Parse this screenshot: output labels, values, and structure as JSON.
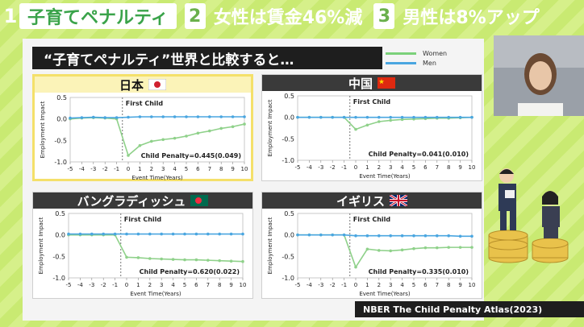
{
  "banner": {
    "items": [
      {
        "num": "1",
        "label": "子育てペナルティ"
      },
      {
        "num": "2",
        "label": "女性は賃金46%減"
      },
      {
        "num": "3",
        "label": "男性は8%アップ"
      }
    ]
  },
  "board": {
    "title": "“子育てペナルティ”世界と比較すると…",
    "legend": [
      {
        "label": "Women",
        "color": "#7bd17a"
      },
      {
        "label": "Men",
        "color": "#4aa6e0"
      }
    ],
    "source": "NBER The Child Penalty Atlas(2023)"
  },
  "colors": {
    "women": "#8fd18a",
    "men": "#4aa6e0",
    "background": "#c9ea72"
  },
  "panels": [
    {
      "country": "日本",
      "flag": "japan-flag-icon",
      "penalty": "Child Penalty=0.445(0.049)",
      "women_x": "w_japan"
    },
    {
      "country": "中国",
      "flag": "china-flag-icon",
      "penalty": "Child Penalty=0.041(0.010)"
    },
    {
      "country": "バングラディッシュ",
      "flag": "bangladesh-flag-icon",
      "penalty": "Child Penalty=0.620(0.022)"
    },
    {
      "country": "イギリス",
      "flag": "uk-flag-icon",
      "penalty": "Child Penalty=0.335(0.010)"
    }
  ],
  "axis": {
    "ylabel": "Employment Impact",
    "xlabel": "Event Time(Years)",
    "first_child": "First Child",
    "yticks": [
      "0.5",
      "0.0",
      "-0.5",
      "-1.0"
    ],
    "xticks": [
      "-5",
      "-4",
      "-3",
      "-2",
      "-1",
      "0",
      "1",
      "2",
      "3",
      "4",
      "5",
      "6",
      "7",
      "8",
      "9",
      "10"
    ]
  },
  "chart_data": [
    {
      "type": "line",
      "title": "日本",
      "x": [
        -5,
        -4,
        -3,
        -2,
        -1,
        0,
        1,
        2,
        3,
        4,
        5,
        6,
        7,
        8,
        9,
        10
      ],
      "ylim": [
        -1.0,
        0.5
      ],
      "series": [
        {
          "name": "Women",
          "values": [
            0.0,
            0.02,
            0.03,
            0.02,
            0.0,
            -0.85,
            -0.62,
            -0.52,
            -0.48,
            -0.45,
            -0.4,
            -0.33,
            -0.28,
            -0.22,
            -0.18,
            -0.12
          ]
        },
        {
          "name": "Men",
          "values": [
            0.02,
            0.03,
            0.04,
            0.03,
            0.03,
            0.04,
            0.05,
            0.05,
            0.05,
            0.05,
            0.05,
            0.05,
            0.05,
            0.05,
            0.05,
            0.05
          ]
        }
      ]
    },
    {
      "type": "line",
      "title": "中国",
      "x": [
        -5,
        -4,
        -3,
        -2,
        -1,
        0,
        1,
        2,
        3,
        4,
        5,
        6,
        7,
        8,
        9,
        10
      ],
      "ylim": [
        -1.0,
        0.5
      ],
      "series": [
        {
          "name": "Women",
          "values": [
            0.0,
            0.0,
            0.0,
            0.0,
            0.0,
            -0.28,
            -0.18,
            -0.1,
            -0.07,
            -0.05,
            -0.04,
            -0.03,
            -0.02,
            -0.02,
            -0.01,
            0.0
          ]
        },
        {
          "name": "Men",
          "values": [
            0.0,
            0.0,
            0.0,
            0.0,
            0.0,
            0.0,
            0.0,
            0.0,
            0.0,
            0.0,
            0.0,
            0.0,
            0.0,
            0.0,
            0.0,
            0.0
          ]
        }
      ]
    },
    {
      "type": "line",
      "title": "バングラディッシュ",
      "x": [
        -5,
        -4,
        -3,
        -2,
        -1,
        0,
        1,
        2,
        3,
        4,
        5,
        6,
        7,
        8,
        9,
        10
      ],
      "ylim": [
        -1.0,
        0.5
      ],
      "series": [
        {
          "name": "Women",
          "values": [
            0.0,
            0.0,
            0.0,
            0.0,
            0.0,
            -0.52,
            -0.53,
            -0.55,
            -0.56,
            -0.57,
            -0.58,
            -0.58,
            -0.59,
            -0.6,
            -0.61,
            -0.62
          ]
        },
        {
          "name": "Men",
          "values": [
            0.02,
            0.02,
            0.02,
            0.02,
            0.02,
            0.02,
            0.02,
            0.02,
            0.02,
            0.02,
            0.02,
            0.02,
            0.02,
            0.02,
            0.02,
            0.02
          ]
        }
      ]
    },
    {
      "type": "line",
      "title": "イギリス",
      "x": [
        -5,
        -4,
        -3,
        -2,
        -1,
        0,
        1,
        2,
        3,
        4,
        5,
        6,
        7,
        8,
        9,
        10
      ],
      "ylim": [
        -1.0,
        0.5
      ],
      "series": [
        {
          "name": "Women",
          "values": [
            0.0,
            0.0,
            0.0,
            0.0,
            0.0,
            -0.75,
            -0.33,
            -0.36,
            -0.37,
            -0.35,
            -0.32,
            -0.3,
            -0.3,
            -0.29,
            -0.29,
            -0.29
          ]
        },
        {
          "name": "Men",
          "values": [
            0.0,
            0.0,
            0.0,
            0.0,
            0.0,
            -0.02,
            -0.02,
            -0.02,
            -0.02,
            -0.02,
            -0.02,
            -0.02,
            -0.02,
            -0.02,
            -0.03,
            -0.03
          ]
        }
      ]
    }
  ]
}
